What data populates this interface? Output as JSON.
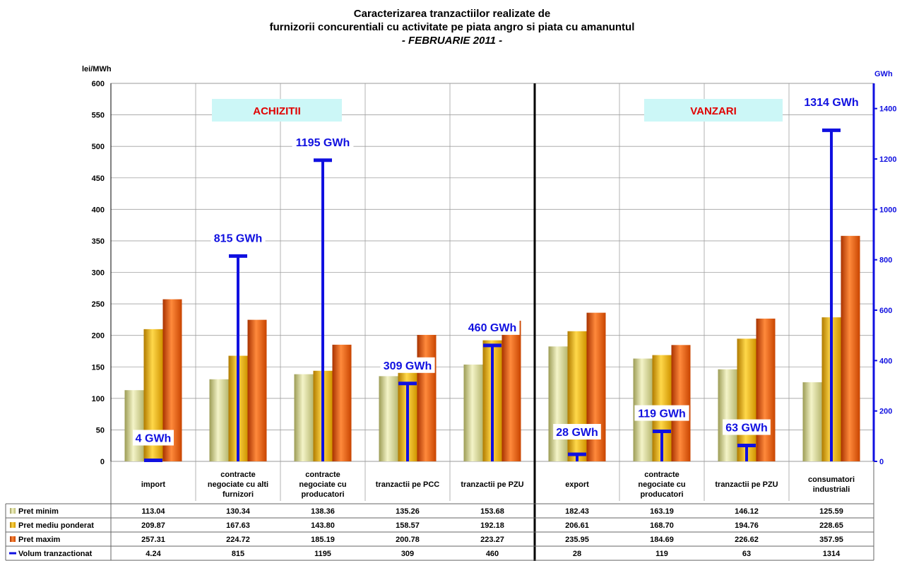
{
  "chart_data": {
    "type": "bar",
    "title": [
      "Caracterizarea tranzactiilor realizate de",
      "furnizorii concurentiali cu activitate pe piata angro si piata cu amanuntul",
      "- FEBRUARIE 2011 -"
    ],
    "ylabel_left": "lei/MWh",
    "ylabel_right": "GWh",
    "ylim": [
      0,
      600
    ],
    "y_ticks": [
      0,
      50,
      100,
      150,
      200,
      250,
      300,
      350,
      400,
      450,
      500,
      550,
      600
    ],
    "ylim_right": [
      0,
      1500
    ],
    "y_ticks_right": [
      0,
      200,
      400,
      600,
      800,
      1000,
      1200,
      1400
    ],
    "categories": [
      [
        "import"
      ],
      [
        "contracte",
        "negociate cu alti",
        "furnizori"
      ],
      [
        "contracte",
        "negociate cu",
        "producatori"
      ],
      [
        "tranzactii pe PCC"
      ],
      [
        "tranzactii pe PZU"
      ],
      [
        "export"
      ],
      [
        "contracte",
        "negociate cu",
        "producatori"
      ],
      [
        "tranzactii pe PZU"
      ],
      [
        "consumatori",
        "industriali"
      ]
    ],
    "sections": [
      {
        "label": "ACHIZITII",
        "color": "#e00000"
      },
      {
        "label": "VANZARI",
        "color": "#e00000"
      }
    ],
    "series": [
      {
        "name": "Pret minim",
        "axis": "left",
        "type": "bar",
        "color": "#d8d88a",
        "values": [
          113.04,
          130.34,
          138.36,
          135.26,
          153.68,
          182.43,
          163.19,
          146.12,
          125.59
        ],
        "labels": [
          "113.04",
          "130.34",
          "138.36",
          "135.26",
          "153.68",
          "182.43",
          "163.19",
          "146.12",
          "125.59"
        ]
      },
      {
        "name": "Pret mediu ponderat",
        "axis": "left",
        "type": "bar",
        "color": "#f2b800",
        "values": [
          209.87,
          167.63,
          143.8,
          158.57,
          192.18,
          206.61,
          168.7,
          194.76,
          228.65
        ],
        "labels": [
          "209.87",
          "167.63",
          "143.80",
          "158.57",
          "192.18",
          "206.61",
          "168.70",
          "194.76",
          "228.65"
        ]
      },
      {
        "name": "Pret maxim",
        "axis": "left",
        "type": "bar",
        "color": "#e8560a",
        "values": [
          257.31,
          224.72,
          185.19,
          200.78,
          223.27,
          235.95,
          184.69,
          226.62,
          357.95
        ],
        "labels": [
          "257.31",
          "224.72",
          "185.19",
          "200.78",
          "223.27",
          "235.95",
          "184.69",
          "226.62",
          "357.95"
        ]
      },
      {
        "name": "Volum tranzactionat",
        "axis": "right",
        "type": "marker",
        "color": "#1010e0",
        "values": [
          4.24,
          815,
          1195,
          309,
          460,
          28,
          119,
          63,
          1314
        ],
        "labels": [
          "4.24",
          "815",
          "1195",
          "309",
          "460",
          "28",
          "119",
          "63",
          "1314"
        ],
        "annotations": [
          "4 GWh",
          "815 GWh",
          "1195 GWh",
          "309 GWh",
          "460 GWh",
          "28 GWh",
          "119 GWh",
          "63 GWh",
          "1314 GWh"
        ]
      }
    ],
    "grid": true,
    "legend": "data-table-bottom"
  }
}
